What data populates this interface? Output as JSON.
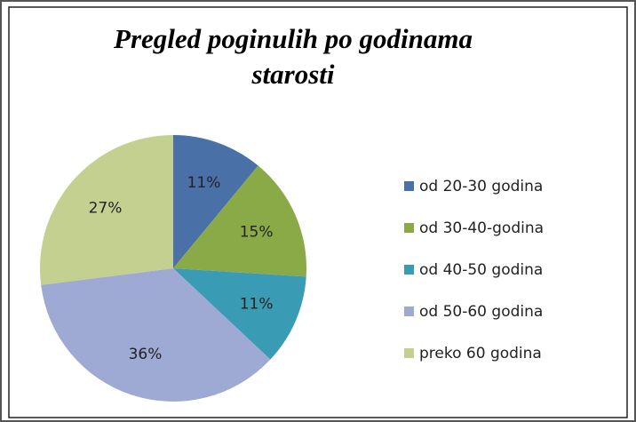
{
  "chart_data": {
    "type": "pie",
    "title": "Pregled poginulih po godinama starosti",
    "categories": [
      "od 20-30 godina",
      "od 30-40-godina",
      "od 40-50 godina",
      "od 50-60 godina",
      "preko 60 godina"
    ],
    "values": [
      11,
      15,
      11,
      36,
      27
    ],
    "value_labels": [
      "11%",
      "15%",
      "11%",
      "36%",
      "27%"
    ],
    "colors": [
      "#4a70a8",
      "#8aaa48",
      "#3a9cb4",
      "#9ea9d4",
      "#c3d08f"
    ],
    "legend": "right"
  }
}
